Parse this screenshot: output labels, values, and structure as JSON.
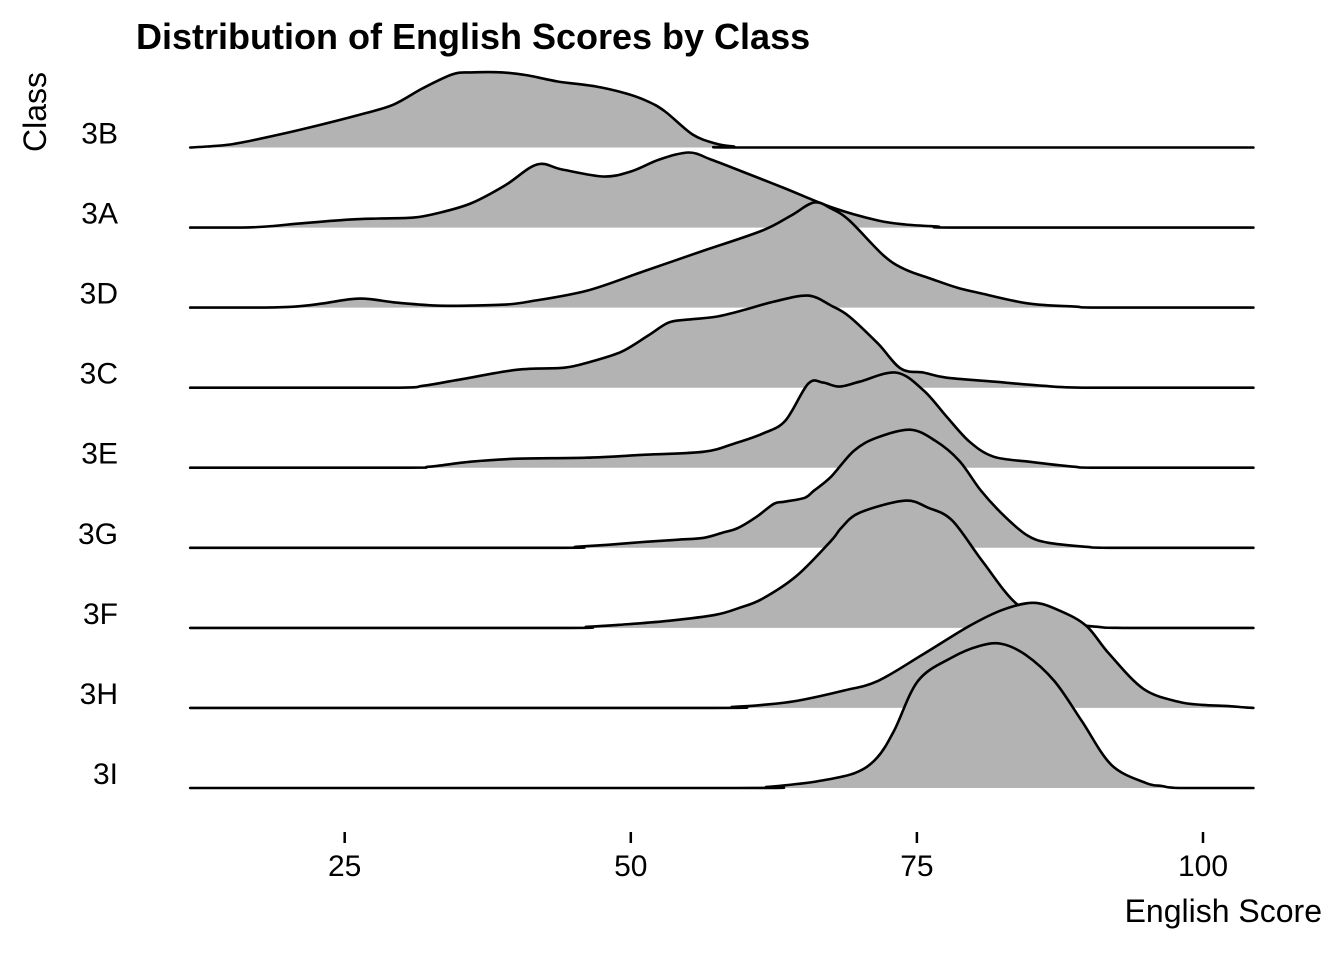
{
  "title": "Distribution of English Scores by Class",
  "axes": {
    "x_label": "English Score",
    "y_label": "Class",
    "x_ticks": [
      25,
      50,
      75,
      100
    ],
    "x_range": [
      11.5,
      104.4
    ]
  },
  "colors": {
    "ridge_fill": "#b3b3b3",
    "ridge_stroke": "#000000",
    "background": "#ffffff",
    "text": "#000000",
    "tick": "#000000"
  },
  "chart_data": {
    "type": "area",
    "subtype": "ridgeline-density",
    "title": "Distribution of English Scores by Class",
    "xlabel": "English Score",
    "ylabel": "Class",
    "x_ticks": [
      25,
      50,
      75,
      100
    ],
    "x_range": [
      11.5,
      104.4
    ],
    "grid": false,
    "legend": false,
    "categories": [
      "3B",
      "3A",
      "3D",
      "3C",
      "3E",
      "3G",
      "3F",
      "3H",
      "3I"
    ],
    "series": [
      {
        "name": "3B",
        "points": [
          [
            11.5,
            0
          ],
          [
            13,
            0.013
          ],
          [
            15,
            0.038
          ],
          [
            17.3,
            0.1
          ],
          [
            21.6,
            0.238
          ],
          [
            26.7,
            0.425
          ],
          [
            29.3,
            0.538
          ],
          [
            31.8,
            0.738
          ],
          [
            34.4,
            0.913
          ],
          [
            36,
            0.938
          ],
          [
            38.8,
            0.938
          ],
          [
            41,
            0.9
          ],
          [
            43.6,
            0.825
          ],
          [
            46.9,
            0.763
          ],
          [
            49.6,
            0.675
          ],
          [
            51.5,
            0.575
          ],
          [
            53,
            0.45
          ],
          [
            55.4,
            0.163
          ],
          [
            57.4,
            0.05
          ],
          [
            59,
            0.013
          ],
          [
            61,
            0
          ],
          [
            104.4,
            0
          ]
        ]
      },
      {
        "name": "3A",
        "points": [
          [
            11.5,
            0
          ],
          [
            16,
            0
          ],
          [
            18.2,
            0.013
          ],
          [
            21,
            0.05
          ],
          [
            25.4,
            0.1
          ],
          [
            28,
            0.113
          ],
          [
            31,
            0.125
          ],
          [
            33,
            0.175
          ],
          [
            36,
            0.3
          ],
          [
            39,
            0.525
          ],
          [
            41.8,
            0.788
          ],
          [
            44,
            0.725
          ],
          [
            47.6,
            0.638
          ],
          [
            50,
            0.7
          ],
          [
            52.5,
            0.85
          ],
          [
            55.1,
            0.938
          ],
          [
            57,
            0.85
          ],
          [
            59.5,
            0.713
          ],
          [
            63.5,
            0.488
          ],
          [
            67.6,
            0.25
          ],
          [
            71.6,
            0.088
          ],
          [
            74,
            0.038
          ],
          [
            76.8,
            0.013
          ],
          [
            79,
            0
          ],
          [
            104.4,
            0
          ]
        ]
      },
      {
        "name": "3D",
        "points": [
          [
            11.5,
            0
          ],
          [
            18,
            0
          ],
          [
            20.7,
            0.013
          ],
          [
            23,
            0.05
          ],
          [
            26.3,
            0.113
          ],
          [
            29.5,
            0.063
          ],
          [
            33,
            0.025
          ],
          [
            36,
            0.025
          ],
          [
            39,
            0.038
          ],
          [
            41.1,
            0.075
          ],
          [
            46.2,
            0.213
          ],
          [
            51.3,
            0.463
          ],
          [
            56.4,
            0.713
          ],
          [
            61.5,
            0.963
          ],
          [
            64,
            1.15
          ],
          [
            66,
            1.313
          ],
          [
            67.5,
            1.238
          ],
          [
            69.1,
            1.088
          ],
          [
            72.1,
            0.65
          ],
          [
            74,
            0.475
          ],
          [
            76.2,
            0.363
          ],
          [
            78.5,
            0.25
          ],
          [
            80.7,
            0.175
          ],
          [
            84.8,
            0.05
          ],
          [
            88.8,
            0.013
          ],
          [
            91,
            0
          ],
          [
            104.4,
            0
          ]
        ]
      },
      {
        "name": "3C",
        "points": [
          [
            11.5,
            0
          ],
          [
            29,
            0
          ],
          [
            31.9,
            0.025
          ],
          [
            35,
            0.1
          ],
          [
            40.1,
            0.225
          ],
          [
            44.2,
            0.25
          ],
          [
            46.5,
            0.325
          ],
          [
            49.2,
            0.45
          ],
          [
            51.5,
            0.65
          ],
          [
            53.3,
            0.813
          ],
          [
            55,
            0.85
          ],
          [
            57.5,
            0.888
          ],
          [
            60,
            0.975
          ],
          [
            62.5,
            1.075
          ],
          [
            65.5,
            1.15
          ],
          [
            67.5,
            1.025
          ],
          [
            69.1,
            0.888
          ],
          [
            71.6,
            0.55
          ],
          [
            73.6,
            0.238
          ],
          [
            75.6,
            0.188
          ],
          [
            77.6,
            0.125
          ],
          [
            81.8,
            0.075
          ],
          [
            85.9,
            0.025
          ],
          [
            90,
            0
          ],
          [
            104.4,
            0
          ]
        ]
      },
      {
        "name": "3E",
        "points": [
          [
            11.5,
            0
          ],
          [
            30,
            0
          ],
          [
            32.4,
            0.013
          ],
          [
            36,
            0.075
          ],
          [
            40.1,
            0.113
          ],
          [
            46.1,
            0.125
          ],
          [
            51.3,
            0.163
          ],
          [
            56.4,
            0.2
          ],
          [
            59,
            0.3
          ],
          [
            61.5,
            0.425
          ],
          [
            63.5,
            0.588
          ],
          [
            65.5,
            1.05
          ],
          [
            66.8,
            1.063
          ],
          [
            68.2,
            1.013
          ],
          [
            70,
            1.075
          ],
          [
            73.2,
            1.188
          ],
          [
            75.6,
            0.963
          ],
          [
            77.6,
            0.638
          ],
          [
            79.6,
            0.325
          ],
          [
            81.7,
            0.138
          ],
          [
            84.8,
            0.075
          ],
          [
            88.7,
            0.013
          ],
          [
            91,
            0
          ],
          [
            104.4,
            0
          ]
        ]
      },
      {
        "name": "3G",
        "points": [
          [
            11.5,
            0
          ],
          [
            43,
            0
          ],
          [
            45.2,
            0.013
          ],
          [
            48,
            0.038
          ],
          [
            51.3,
            0.075
          ],
          [
            54,
            0.1
          ],
          [
            56.4,
            0.125
          ],
          [
            58,
            0.188
          ],
          [
            59.4,
            0.25
          ],
          [
            61,
            0.388
          ],
          [
            62.5,
            0.55
          ],
          [
            63.4,
            0.575
          ],
          [
            65.2,
            0.625
          ],
          [
            66,
            0.713
          ],
          [
            67.5,
            0.888
          ],
          [
            69.5,
            1.213
          ],
          [
            71.5,
            1.375
          ],
          [
            74.4,
            1.475
          ],
          [
            76.6,
            1.338
          ],
          [
            78.7,
            1.088
          ],
          [
            80.6,
            0.713
          ],
          [
            82.7,
            0.388
          ],
          [
            84.7,
            0.15
          ],
          [
            86.5,
            0.063
          ],
          [
            89.8,
            0.013
          ],
          [
            92,
            0
          ],
          [
            104.4,
            0
          ]
        ]
      },
      {
        "name": "3F",
        "points": [
          [
            11.5,
            0
          ],
          [
            43.5,
            0
          ],
          [
            46.2,
            0.013
          ],
          [
            49,
            0.038
          ],
          [
            53.3,
            0.088
          ],
          [
            57.4,
            0.163
          ],
          [
            59.5,
            0.25
          ],
          [
            61.5,
            0.363
          ],
          [
            64.5,
            0.65
          ],
          [
            67.5,
            1.088
          ],
          [
            68.4,
            1.25
          ],
          [
            70,
            1.438
          ],
          [
            73.9,
            1.588
          ],
          [
            76,
            1.5
          ],
          [
            78.1,
            1.338
          ],
          [
            80.7,
            0.838
          ],
          [
            83.7,
            0.3
          ],
          [
            86.8,
            0.088
          ],
          [
            90.8,
            0.013
          ],
          [
            93,
            0
          ],
          [
            104.4,
            0
          ]
        ]
      },
      {
        "name": "3H",
        "points": [
          [
            11.5,
            0
          ],
          [
            56,
            0
          ],
          [
            58.9,
            0.013
          ],
          [
            61.5,
            0.038
          ],
          [
            64.5,
            0.088
          ],
          [
            68.5,
            0.213
          ],
          [
            71.6,
            0.338
          ],
          [
            75.6,
            0.675
          ],
          [
            79.6,
            1.025
          ],
          [
            82.5,
            1.225
          ],
          [
            85.2,
            1.313
          ],
          [
            87.5,
            1.213
          ],
          [
            89.8,
            1.025
          ],
          [
            91.8,
            0.675
          ],
          [
            94.8,
            0.238
          ],
          [
            97.9,
            0.075
          ],
          [
            100,
            0.038
          ],
          [
            102,
            0.025
          ],
          [
            103.7,
            0.006
          ],
          [
            104.4,
            0
          ]
        ]
      },
      {
        "name": "3I",
        "points": [
          [
            11.5,
            0
          ],
          [
            59,
            0
          ],
          [
            61.9,
            0.013
          ],
          [
            64.5,
            0.05
          ],
          [
            66.5,
            0.088
          ],
          [
            69.6,
            0.188
          ],
          [
            71.5,
            0.375
          ],
          [
            73,
            0.713
          ],
          [
            75.1,
            1.338
          ],
          [
            78,
            1.625
          ],
          [
            80.5,
            1.775
          ],
          [
            82.4,
            1.8
          ],
          [
            84.5,
            1.663
          ],
          [
            87,
            1.338
          ],
          [
            89.4,
            0.838
          ],
          [
            92,
            0.288
          ],
          [
            95,
            0.063
          ],
          [
            96.4,
            0.025
          ],
          [
            98,
            0
          ],
          [
            104.4,
            0
          ]
        ]
      }
    ],
    "density_unit": "fraction of row spacing (row step = 1.0); peaks may overlap neighbouring rows"
  }
}
